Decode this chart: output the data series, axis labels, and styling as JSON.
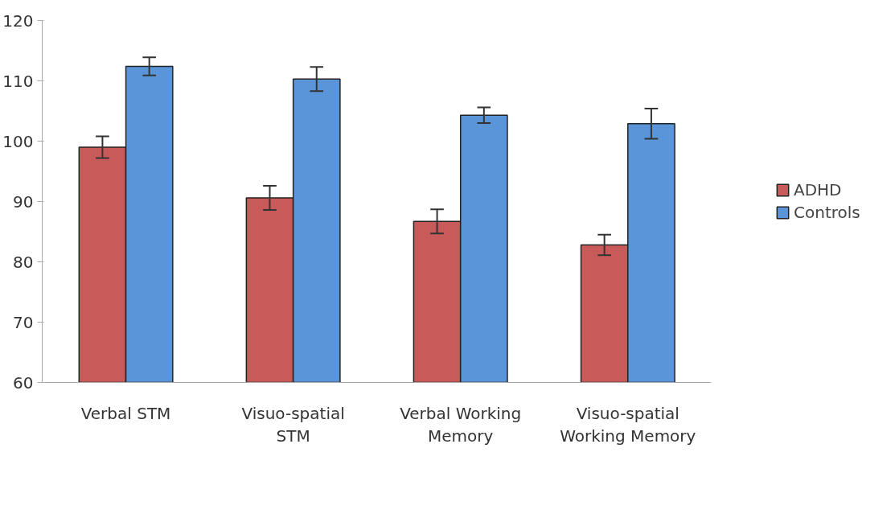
{
  "chart_data": {
    "type": "bar",
    "categories": [
      "Verbal STM",
      "Visuo-spatial STM",
      "Verbal Working Memory",
      "Visuo-spatial Working Memory"
    ],
    "series": [
      {
        "name": "ADHD",
        "color": "#c85a5a",
        "values": [
          99.0,
          90.6,
          86.7,
          82.8
        ],
        "errors": [
          1.8,
          2.0,
          2.0,
          1.7
        ]
      },
      {
        "name": "Controls",
        "color": "#5b95d9",
        "values": [
          112.4,
          110.3,
          104.3,
          102.9
        ],
        "errors": [
          1.5,
          2.0,
          1.3,
          2.5
        ]
      }
    ],
    "ylim": [
      60,
      120
    ],
    "yticks": [
      60,
      70,
      80,
      90,
      100,
      110,
      120
    ],
    "grid": false,
    "legend": "right"
  }
}
